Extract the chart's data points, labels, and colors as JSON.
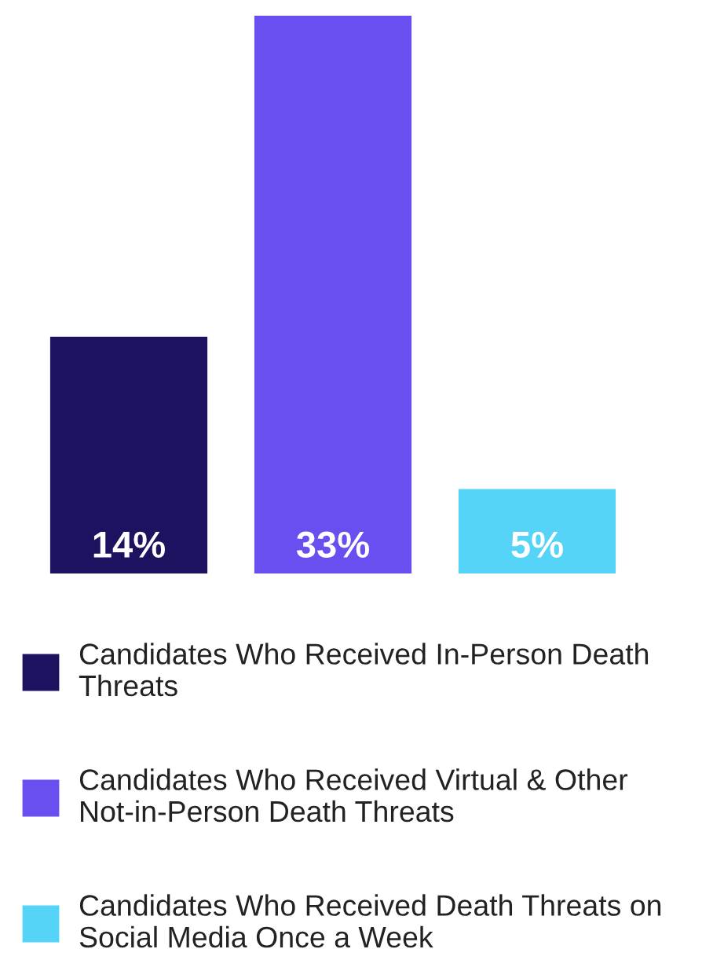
{
  "chart_data": {
    "type": "bar",
    "categories": [
      null,
      null,
      null
    ],
    "series": [
      {
        "name": "Candidates Who Received In-Person Death Threats",
        "color": "#1d1260",
        "values": [
          14,
          null,
          null
        ],
        "value_labels": [
          "14%",
          null,
          null
        ]
      },
      {
        "name": "Candidates Who Received Virtual & Other Not-in-Person Death Threats",
        "color": "#6a4ff0",
        "values": [
          null,
          33,
          null
        ],
        "value_labels": [
          null,
          "33%",
          null
        ]
      },
      {
        "name": "Candidates Who Received Death Threats on Social Media Once a Week",
        "color": "#55d4f8",
        "values": [
          null,
          null,
          5
        ],
        "value_labels": [
          null,
          null,
          "5%"
        ]
      }
    ],
    "stacked": true,
    "legend": "bottom",
    "grid": false
  }
}
